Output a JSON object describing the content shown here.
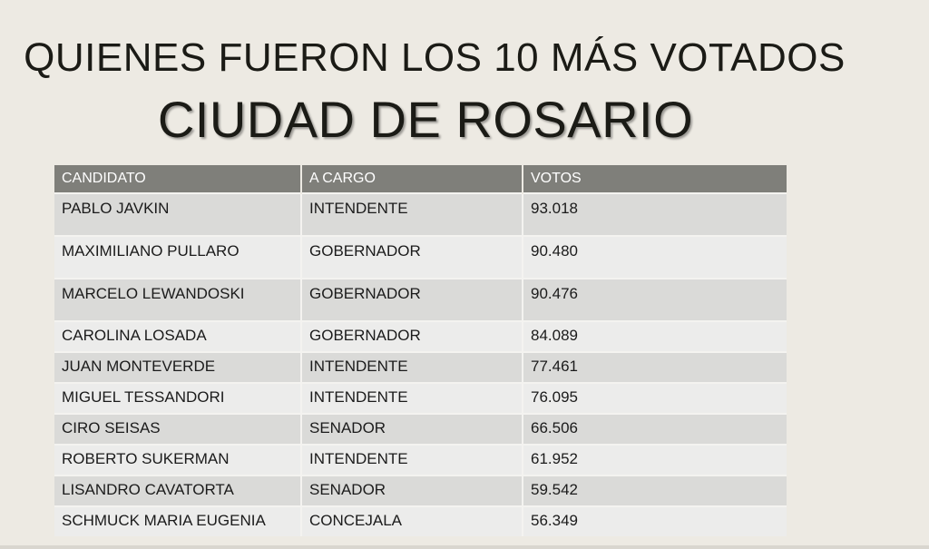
{
  "title": {
    "line1": "QUIENES FUERON LOS 10 MÁS VOTADOS",
    "line2": "CIUDAD DE ROSARIO"
  },
  "table": {
    "headers": [
      "CANDIDATO",
      "A CARGO",
      "VOTOS"
    ],
    "rows": [
      [
        "PABLO JAVKIN",
        "INTENDENTE",
        "93.018"
      ],
      [
        "MAXIMILIANO PULLARO",
        "GOBERNADOR",
        "90.480"
      ],
      [
        "MARCELO LEWANDOSKI",
        "GOBERNADOR",
        "90.476"
      ],
      [
        "CAROLINA LOSADA",
        "GOBERNADOR",
        "84.089"
      ],
      [
        "JUAN MONTEVERDE",
        "INTENDENTE",
        "77.461"
      ],
      [
        "MIGUEL TESSANDORI",
        "INTENDENTE",
        "76.095"
      ],
      [
        "CIRO SEISAS",
        "SENADOR",
        "66.506"
      ],
      [
        "ROBERTO SUKERMAN",
        "INTENDENTE",
        "61.952"
      ],
      [
        "LISANDRO CAVATORTA",
        "SENADOR",
        "59.542"
      ],
      [
        "SCHMUCK MARIA EUGENIA",
        "CONCEJALA",
        "56.349"
      ]
    ]
  }
}
